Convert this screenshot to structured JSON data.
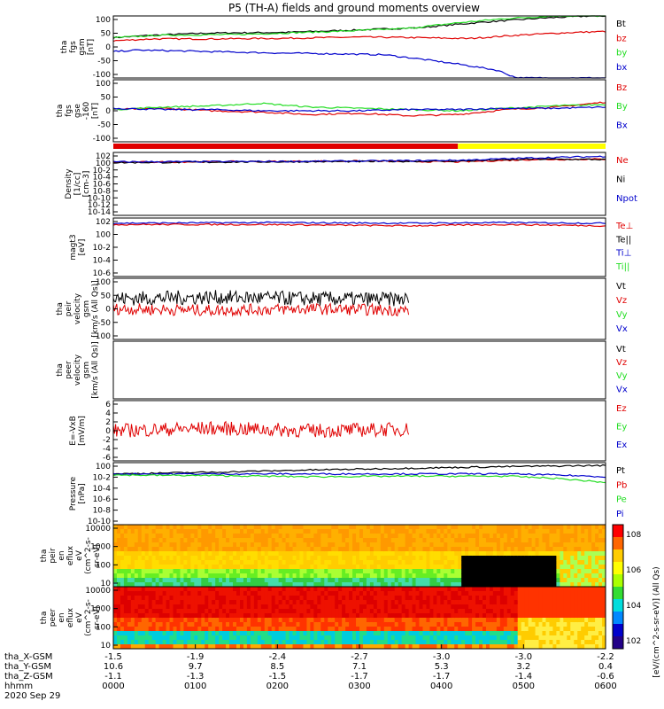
{
  "title": "P5 (TH-A) fields and ground moments overview",
  "colors": {
    "black": "#000000",
    "red": "#e00000",
    "green": "#22dd22",
    "blue": "#0000cc",
    "yellow": "#ffff00"
  },
  "chart_data": [
    {
      "type": "line",
      "ylabel_lines": [
        "tha",
        "fgs",
        "gsm",
        "[nT]"
      ],
      "yticks": [
        "100",
        "50",
        "0",
        "-50",
        "-100"
      ],
      "ylim": [
        -100,
        100
      ],
      "legend": [
        "Bt",
        "bz",
        "by",
        "bx"
      ],
      "legend_colors": [
        "black",
        "red",
        "green",
        "blue"
      ],
      "series": [
        {
          "name": "Bt",
          "color": "black",
          "x": [
            0,
            0.08,
            0.2,
            0.35,
            0.5,
            0.62,
            0.75,
            0.87,
            0.97,
            1.0
          ],
          "y": [
            30,
            38,
            45,
            47,
            55,
            62,
            80,
            93,
            100,
            100
          ]
        },
        {
          "name": "bz",
          "color": "red",
          "x": [
            0,
            0.08,
            0.2,
            0.35,
            0.5,
            0.62,
            0.72,
            0.82,
            0.92,
            1.0
          ],
          "y": [
            20,
            26,
            26,
            28,
            32,
            30,
            27,
            38,
            46,
            50
          ]
        },
        {
          "name": "by",
          "color": "green",
          "x": [
            0,
            0.1,
            0.25,
            0.35,
            0.45,
            0.6,
            0.7,
            0.8,
            0.9,
            1.0
          ],
          "y": [
            30,
            38,
            40,
            45,
            50,
            60,
            78,
            92,
            100,
            100
          ]
        },
        {
          "name": "bx",
          "color": "blue",
          "x": [
            0,
            0.05,
            0.2,
            0.35,
            0.45,
            0.55,
            0.62,
            0.7,
            0.78,
            0.82,
            1.0
          ],
          "y": [
            -15,
            -10,
            -15,
            -20,
            -22,
            -25,
            -38,
            -55,
            -75,
            -100,
            -100
          ]
        }
      ]
    },
    {
      "type": "line",
      "ylabel_lines": [
        "tha",
        "fgs",
        "gse",
        "-160",
        "[nT]"
      ],
      "yticks": [
        "100",
        "50",
        "0",
        "-50",
        "-100"
      ],
      "ylim": [
        -130,
        120
      ],
      "legend": [
        "Bz",
        "By",
        "Bx"
      ],
      "legend_colors": [
        "red",
        "green",
        "blue"
      ],
      "series": [
        {
          "name": "Bz",
          "color": "red",
          "x": [
            0,
            0.1,
            0.2,
            0.3,
            0.4,
            0.5,
            0.6,
            0.7,
            0.8,
            0.9,
            1.0
          ],
          "y": [
            0,
            5,
            -5,
            -10,
            -20,
            -15,
            -25,
            -20,
            0,
            10,
            30
          ]
        },
        {
          "name": "By",
          "color": "green",
          "x": [
            0,
            0.1,
            0.2,
            0.3,
            0.4,
            0.5,
            0.6,
            0.7,
            0.8,
            0.9,
            1.0
          ],
          "y": [
            0,
            10,
            15,
            25,
            10,
            5,
            0,
            -5,
            5,
            15,
            20
          ]
        },
        {
          "name": "Bx",
          "color": "blue",
          "x": [
            0,
            0.1,
            0.2,
            0.3,
            0.4,
            0.5,
            0.6,
            0.7,
            0.8,
            0.9,
            1.0
          ],
          "y": [
            5,
            0,
            0,
            -5,
            -5,
            -5,
            0,
            0,
            5,
            5,
            10
          ]
        }
      ]
    },
    {
      "type": "line",
      "ylabel_lines": [
        "Density",
        "[1/cc]",
        "[cm-3]"
      ],
      "yticks": [
        "10^2",
        "10^0",
        "10^-2",
        "10^-4",
        "10^-6",
        "10^-8",
        "10^-10",
        "10^-12",
        "10^-14"
      ],
      "ylim": [
        -14,
        2
      ],
      "legend": [
        "Ne",
        "Ni",
        "Npot"
      ],
      "legend_colors": [
        "red",
        "black",
        "blue"
      ],
      "series": [
        {
          "name": "Ne",
          "color": "red",
          "x": [
            0,
            0.3,
            0.5,
            0.7,
            0.85,
            1.0
          ],
          "y": [
            -0.5,
            -0.3,
            -0.2,
            -0.4,
            0.2,
            0.3
          ]
        },
        {
          "name": "Ni",
          "color": "black",
          "x": [
            0,
            0.3,
            0.5,
            0.7,
            0.85,
            1.0
          ],
          "y": [
            -0.6,
            -0.4,
            -0.3,
            -0.2,
            0.3,
            0.2
          ]
        },
        {
          "name": "Npot",
          "color": "blue",
          "x": [
            0,
            0.3,
            0.5,
            0.7,
            0.85,
            1.0
          ],
          "y": [
            -0.4,
            -0.3,
            -0.2,
            0.0,
            0.6,
            1.0
          ]
        }
      ]
    },
    {
      "type": "line",
      "ylabel_lines": [
        "magt3",
        "[eV]"
      ],
      "yticks": [
        "10^2",
        "10^0",
        "10^-2",
        "10^-4",
        "10^-6"
      ],
      "ylim": [
        -6,
        3
      ],
      "legend": [
        "Te⊥",
        "Te||",
        "Ti⊥",
        "Ti||"
      ],
      "legend_colors": [
        "red",
        "black",
        "blue",
        "green"
      ],
      "series": [
        {
          "name": "Ti",
          "color": "blue",
          "x": [
            0,
            0.3,
            0.6,
            0.8,
            1.0
          ],
          "y": [
            2.2,
            2.3,
            2.2,
            2.3,
            2.2
          ]
        },
        {
          "name": "Te",
          "color": "red",
          "x": [
            0,
            0.3,
            0.6,
            0.8,
            1.0
          ],
          "y": [
            2.0,
            2.0,
            1.8,
            2.0,
            1.8
          ]
        }
      ]
    },
    {
      "type": "line",
      "ylabel_lines": [
        "tha",
        "peir",
        "velocity",
        "gsm",
        "[km/s (All Qs)]"
      ],
      "yticks": [
        "100",
        "50",
        "0",
        "-50",
        "-100"
      ],
      "ylim": [
        -100,
        110
      ],
      "legend": [
        "Vt",
        "Vz",
        "Vy",
        "Vx"
      ],
      "legend_colors": [
        "black",
        "red",
        "green",
        "blue"
      ],
      "series": [
        {
          "name": "Vt",
          "color": "black",
          "x": [
            0,
            0.2,
            0.4,
            0.6
          ],
          "y": [
            40,
            45,
            40,
            38
          ]
        },
        {
          "name": "Vz",
          "color": "red",
          "x": [
            0,
            0.2,
            0.4,
            0.6
          ],
          "y": [
            5,
            0,
            5,
            0
          ]
        }
      ]
    },
    {
      "type": "line",
      "ylabel_lines": [
        "tha",
        "peer",
        "velocity",
        "gsm",
        "[km/s (All Qs)]"
      ],
      "yticks": [],
      "legend": [
        "Vt",
        "Vz",
        "Vy",
        "Vx"
      ],
      "legend_colors": [
        "black",
        "red",
        "green",
        "blue"
      ],
      "series": []
    },
    {
      "type": "line",
      "ylabel_lines": [
        "E=-VxB",
        "[mV/m]"
      ],
      "yticks": [
        "6",
        "4",
        "2",
        "0",
        "-2",
        "-4",
        "-6"
      ],
      "ylim": [
        -6,
        6
      ],
      "legend": [
        "Ez",
        "Ey",
        "Ex"
      ],
      "legend_colors": [
        "red",
        "green",
        "blue"
      ],
      "series": [
        {
          "name": "Ez",
          "color": "red",
          "x": [
            0,
            0.2,
            0.4,
            0.6
          ],
          "y": [
            0,
            0.5,
            0,
            0.3
          ]
        }
      ]
    },
    {
      "type": "line",
      "ylabel_lines": [
        "Pressure",
        "[nPa]"
      ],
      "yticks": [
        "10^0",
        "10^-2",
        "10^-4",
        "10^-6",
        "10^-8",
        "10^-10"
      ],
      "ylim": [
        -10,
        1
      ],
      "legend": [
        "Pt",
        "Pb",
        "Pe",
        "Pi"
      ],
      "legend_colors": [
        "black",
        "red",
        "green",
        "blue"
      ],
      "series": [
        {
          "name": "Pt",
          "color": "black",
          "x": [
            0,
            0.2,
            0.4,
            0.6,
            0.8,
            1.0
          ],
          "y": [
            -1.0,
            -0.7,
            -0.3,
            0.0,
            0.3,
            0.5
          ]
        },
        {
          "name": "Pi",
          "color": "blue",
          "x": [
            0,
            0.2,
            0.4,
            0.6,
            0.8,
            0.9,
            1.0
          ],
          "y": [
            -1.0,
            -1.0,
            -1.0,
            -1.0,
            -1.0,
            -1.2,
            -1.5
          ]
        },
        {
          "name": "Pe",
          "color": "green",
          "x": [
            0,
            0.2,
            0.4,
            0.6,
            0.8,
            0.9,
            1.0
          ],
          "y": [
            -1.2,
            -1.3,
            -1.5,
            -1.4,
            -1.4,
            -1.8,
            -2.5
          ]
        }
      ]
    },
    {
      "type": "heatmap",
      "ylabel_lines": [
        "tha",
        "peir",
        "en",
        "eflux",
        "eV",
        "(cm^2-s-",
        "sr-eV)"
      ],
      "yticks": [
        "10000",
        "1000",
        "100",
        "10"
      ]
    },
    {
      "type": "heatmap",
      "ylabel_lines": [
        "tha",
        "peer",
        "en",
        "eflux",
        "eV",
        "(cm^2-s-",
        "sr-eV)"
      ],
      "yticks": [
        "10000",
        "1000",
        "100",
        "10"
      ]
    }
  ],
  "colorbar": {
    "ticks": [
      "10^8",
      "10^6",
      "10^4",
      "10^2"
    ],
    "label": "[eV/(cm^2-s-sr-eV)] (All Qs)"
  },
  "xaxis": {
    "rows": [
      {
        "label": "tha_X-GSM",
        "values": [
          "-1.5",
          "-1.9",
          "-2.4",
          "-2.7",
          "-3.0",
          "-3.0",
          "-2.2"
        ]
      },
      {
        "label": "tha_Y-GSM",
        "values": [
          "10.6",
          "9.7",
          "8.5",
          "7.1",
          "5.3",
          "3.2",
          "0.4"
        ]
      },
      {
        "label": "tha_Z-GSM",
        "values": [
          "-1.1",
          "-1.3",
          "-1.5",
          "-1.7",
          "-1.7",
          "-1.4",
          "-0.6"
        ]
      },
      {
        "label": "hhmm",
        "values": [
          "0000",
          "0100",
          "0200",
          "0300",
          "0400",
          "0500",
          "0600"
        ]
      }
    ],
    "date": "2020 Sep 29"
  }
}
